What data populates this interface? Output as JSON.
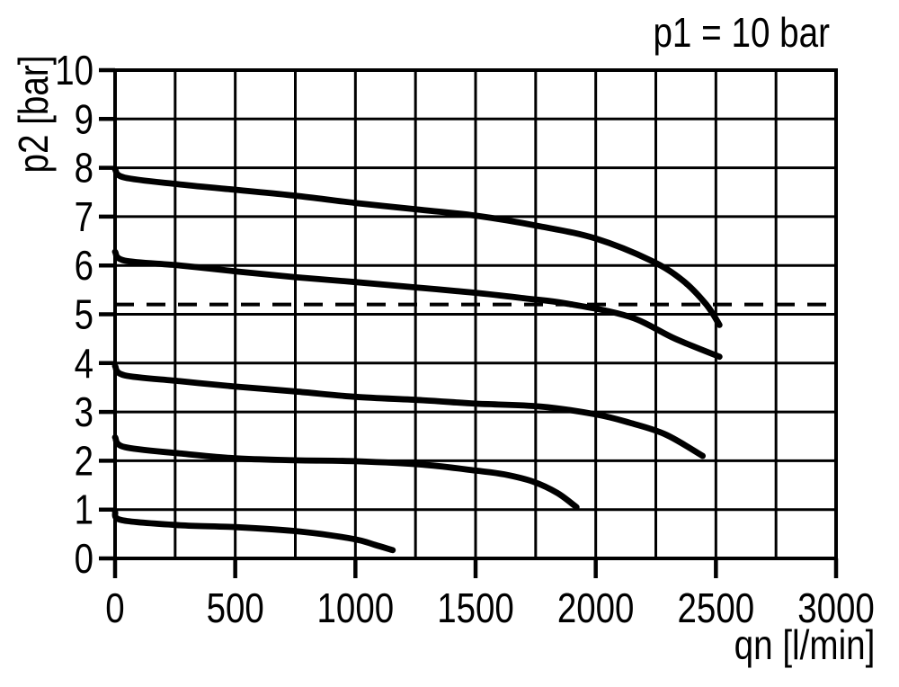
{
  "header": {
    "title": "p1 = 10 bar"
  },
  "axes": {
    "x_label": "qn [l/min]",
    "y_label": "p2 [bar]"
  },
  "colors": {
    "ink": "#000000",
    "paper": "#ffffff"
  },
  "chart_data": {
    "type": "line",
    "title": "p1 = 10 bar",
    "xlabel": "qn [l/min]",
    "ylabel": "p2 [bar]",
    "xlim": [
      0,
      3000
    ],
    "ylim": [
      0,
      10
    ],
    "x_ticks": [
      0,
      500,
      1000,
      1500,
      2000,
      2500,
      3000
    ],
    "y_ticks": [
      0,
      1,
      2,
      3,
      4,
      5,
      6,
      7,
      8,
      9,
      10
    ],
    "x_grid_step": 250,
    "y_grid_step": 1,
    "grid": true,
    "legend": "none",
    "reference_line": {
      "y": 5.2,
      "style": "dashed"
    },
    "series": [
      {
        "name": "curve-1",
        "points": [
          [
            0,
            7.97
          ],
          [
            40,
            7.8
          ],
          [
            270,
            7.66
          ],
          [
            500,
            7.55
          ],
          [
            750,
            7.43
          ],
          [
            1000,
            7.28
          ],
          [
            1270,
            7.14
          ],
          [
            1500,
            7.02
          ],
          [
            1770,
            6.8
          ],
          [
            2000,
            6.55
          ],
          [
            2230,
            6.1
          ],
          [
            2360,
            5.7
          ],
          [
            2460,
            5.2
          ],
          [
            2515,
            4.78
          ]
        ]
      },
      {
        "name": "curve-2",
        "points": [
          [
            0,
            6.28
          ],
          [
            40,
            6.1
          ],
          [
            270,
            6.0
          ],
          [
            500,
            5.88
          ],
          [
            750,
            5.76
          ],
          [
            1000,
            5.66
          ],
          [
            1250,
            5.55
          ],
          [
            1500,
            5.44
          ],
          [
            1700,
            5.33
          ],
          [
            1880,
            5.22
          ],
          [
            2140,
            4.95
          ],
          [
            2330,
            4.5
          ],
          [
            2515,
            4.13
          ]
        ]
      },
      {
        "name": "curve-3",
        "points": [
          [
            0,
            3.94
          ],
          [
            40,
            3.75
          ],
          [
            270,
            3.63
          ],
          [
            500,
            3.52
          ],
          [
            750,
            3.42
          ],
          [
            1000,
            3.31
          ],
          [
            1280,
            3.24
          ],
          [
            1500,
            3.17
          ],
          [
            1770,
            3.11
          ],
          [
            2000,
            2.95
          ],
          [
            2140,
            2.78
          ],
          [
            2290,
            2.54
          ],
          [
            2445,
            2.1
          ]
        ]
      },
      {
        "name": "curve-4",
        "points": [
          [
            0,
            2.48
          ],
          [
            40,
            2.28
          ],
          [
            270,
            2.15
          ],
          [
            500,
            2.05
          ],
          [
            750,
            2.01
          ],
          [
            1000,
            1.99
          ],
          [
            1280,
            1.92
          ],
          [
            1500,
            1.8
          ],
          [
            1620,
            1.72
          ],
          [
            1740,
            1.57
          ],
          [
            1840,
            1.34
          ],
          [
            1920,
            1.05
          ]
        ]
      },
      {
        "name": "curve-5",
        "points": [
          [
            0,
            0.95
          ],
          [
            30,
            0.78
          ],
          [
            270,
            0.68
          ],
          [
            500,
            0.64
          ],
          [
            770,
            0.55
          ],
          [
            990,
            0.4
          ],
          [
            1080,
            0.28
          ],
          [
            1155,
            0.17
          ]
        ]
      }
    ]
  }
}
